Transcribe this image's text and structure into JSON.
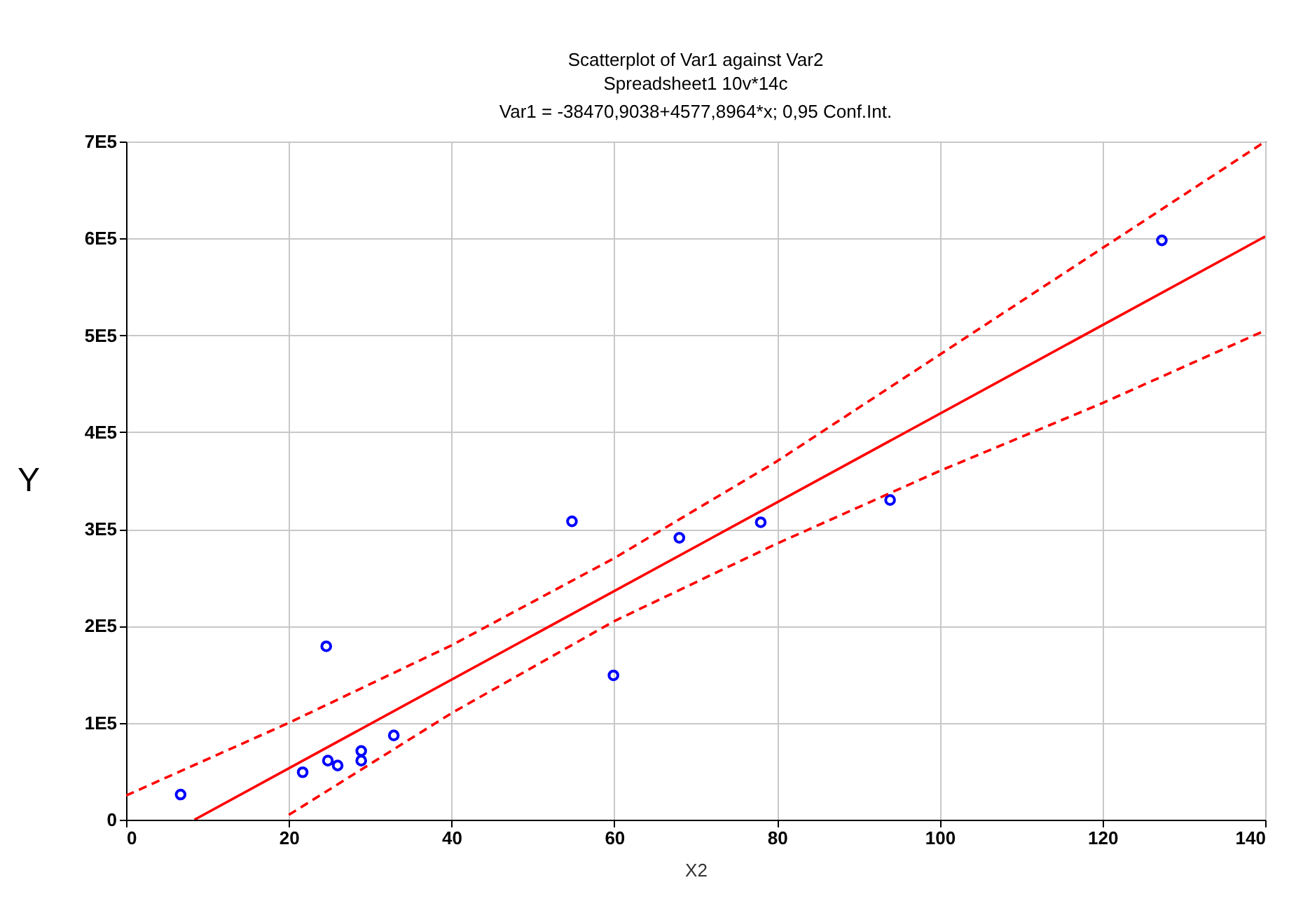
{
  "chart_data": {
    "type": "scatter",
    "title": "Scatterplot of Var1 against Var2",
    "subtitle": "Spreadsheet1 10v*14c\nVar1 = -38470,9038+4577,8964*x; 0,95 Conf.Int.",
    "xlabel": "X2",
    "ylabel": "Y",
    "xlim": [
      0,
      140
    ],
    "xticks": [
      0,
      20,
      40,
      60,
      80,
      100,
      120,
      140
    ],
    "ylim": [
      0,
      700000
    ],
    "yticks": [
      0,
      {
        "value": 100000,
        "label": "1E5"
      },
      {
        "value": 200000,
        "label": "2E5"
      },
      {
        "value": 300000,
        "label": "3E5"
      },
      {
        "value": 400000,
        "label": "4E5"
      },
      {
        "value": 500000,
        "label": "5E5"
      },
      {
        "value": 600000,
        "label": "6E5"
      },
      {
        "value": 700000,
        "label": "7E5"
      }
    ],
    "grid": true,
    "series": [
      {
        "marker": "circle",
        "color": "#0000ff",
        "x": [
          6.7,
          21.7,
          24.8,
          26.0,
          28.9,
          28.9,
          32.9,
          24.6,
          54.8,
          59.9,
          68.0,
          78.0,
          93.9,
          127.3
        ],
        "values": [
          26000,
          49000,
          61000,
          56000,
          71000,
          61000,
          87000,
          179000,
          308000,
          149000,
          291000,
          307000,
          330000,
          598000
        ]
      },
      {
        "type": "line",
        "marker": "none",
        "line_style": "solid",
        "color": "#ff0000",
        "x": [
          8.4,
          140
        ],
        "values": [
          0,
          602000
        ]
      },
      {
        "type": "line",
        "marker": "none",
        "line_style": "dashed",
        "color": "#ff0000",
        "x": [
          0,
          20,
          40,
          60,
          80,
          100,
          120,
          140
        ],
        "values": [
          25000,
          100000,
          180000,
          270000,
          370000,
          480000,
          590000,
          700000
        ]
      },
      {
        "type": "line",
        "marker": "none",
        "line_style": "dashed",
        "color": "#ff0000",
        "x": [
          20,
          40,
          60,
          80,
          100,
          120,
          140
        ],
        "values": [
          5000,
          110000,
          205000,
          285000,
          360000,
          430000,
          505000
        ]
      }
    ]
  }
}
